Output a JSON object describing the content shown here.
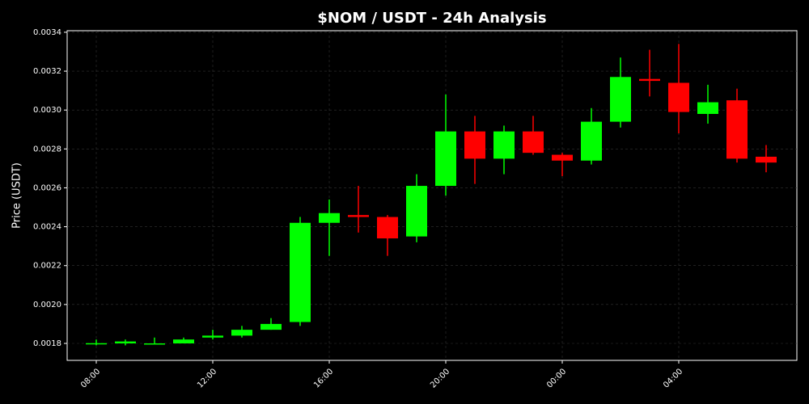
{
  "chart_data": {
    "type": "candlestick",
    "title": "$NOM / USDT - 24h Analysis",
    "y_label": "Price (USDT)",
    "categories": [
      "08:00",
      null,
      null,
      null,
      "12:00",
      null,
      null,
      null,
      "16:00",
      null,
      null,
      null,
      "20:00",
      null,
      null,
      null,
      "00:00",
      null,
      null,
      null,
      "04:00",
      null,
      null,
      null
    ],
    "open": [
      0.0018,
      0.0018,
      0.0018,
      0.0018,
      0.00183,
      0.00184,
      0.00187,
      0.00191,
      0.00242,
      0.00246,
      0.00245,
      0.00235,
      0.00261,
      0.00289,
      0.00275,
      0.00289,
      0.00277,
      0.00274,
      0.00294,
      0.00316,
      0.00314,
      0.00298,
      0.00305,
      0.00276
    ],
    "high": [
      0.00182,
      0.00182,
      0.00183,
      0.00183,
      0.00187,
      0.00189,
      0.00193,
      0.00245,
      0.00254,
      0.00261,
      0.00246,
      0.00267,
      0.00308,
      0.00297,
      0.00292,
      0.00297,
      0.00278,
      0.00301,
      0.00327,
      0.00331,
      0.00334,
      0.00313,
      0.00311,
      0.00282
    ],
    "low": [
      0.00179,
      0.00179,
      0.0018,
      0.0018,
      0.00182,
      0.00183,
      0.00187,
      0.00189,
      0.00225,
      0.00237,
      0.00225,
      0.00232,
      0.00256,
      0.00262,
      0.00267,
      0.00277,
      0.00266,
      0.00272,
      0.00291,
      0.00307,
      0.00288,
      0.00293,
      0.00273,
      0.00268
    ],
    "close": [
      0.001801,
      0.00181,
      0.0018,
      0.00182,
      0.00184,
      0.00187,
      0.0019,
      0.00242,
      0.00247,
      0.00245,
      0.00234,
      0.00261,
      0.00289,
      0.00275,
      0.00289,
      0.00278,
      0.00274,
      0.00294,
      0.00317,
      0.00315,
      0.00299,
      0.00304,
      0.00275,
      0.00273
    ],
    "up_color": "#00ff00",
    "down_color": "#ff0000",
    "ylim": [
      0.0017127,
      0.003408
    ],
    "yticks": [
      0.0018,
      {
        "value": 0.002,
        "label": "0.0020"
      },
      0.0022,
      0.0024,
      0.0026,
      0.0028,
      {
        "value": 0.003,
        "label": "0.0030"
      },
      0.0032,
      0.0034
    ],
    "grid": true
  }
}
